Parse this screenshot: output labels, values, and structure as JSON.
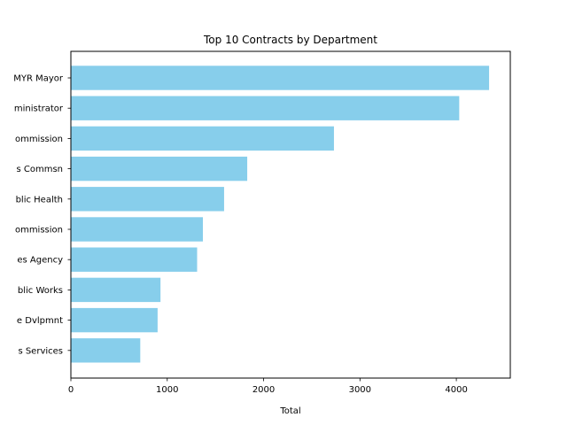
{
  "chart_data": {
    "type": "bar",
    "orientation": "horizontal",
    "title": "Top 10 Contracts by Department",
    "xlabel": "Total",
    "ylabel": "",
    "xlim": [
      0,
      4560
    ],
    "x_ticks": [
      0,
      1000,
      2000,
      3000,
      4000
    ],
    "categories": [
      "MYR Mayor",
      "ministrator",
      "ommission",
      "s Commsn",
      "blic Health",
      "ommission",
      "es Agency",
      "blic Works",
      "e Dvlpmnt",
      "s Services"
    ],
    "values": [
      4340,
      4030,
      2730,
      1830,
      1590,
      1370,
      1310,
      930,
      900,
      720
    ],
    "bar_color": "#87ceeb",
    "grid": false,
    "legend": "none"
  }
}
